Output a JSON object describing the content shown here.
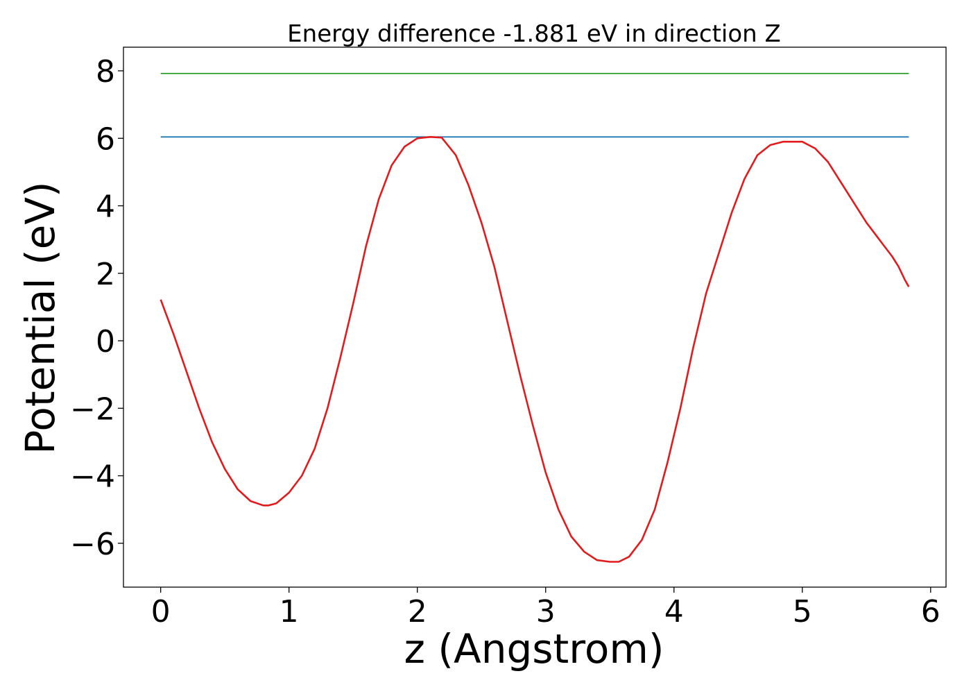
{
  "chart_data": {
    "type": "line",
    "title": "Energy difference -1.881 eV in direction Z",
    "xlabel": "z (Angstrom)",
    "ylabel": "Potential (eV)",
    "xlim": [
      -0.29,
      6.12
    ],
    "ylim": [
      -7.3,
      8.7
    ],
    "xticks": [
      0,
      1,
      2,
      3,
      4,
      5,
      6
    ],
    "xtick_labels": [
      "0",
      "1",
      "2",
      "3",
      "4",
      "5",
      "6"
    ],
    "yticks": [
      -6,
      -4,
      -2,
      0,
      2,
      4,
      6,
      8
    ],
    "ytick_labels": [
      "−6",
      "−4",
      "−2",
      "0",
      "2",
      "4",
      "6",
      "8"
    ],
    "grid": false,
    "series": [
      {
        "color": "#2ca02c",
        "x": [
          0.0,
          5.83
        ],
        "y": [
          7.92,
          7.92
        ]
      },
      {
        "color": "#1f77b4",
        "x": [
          0.0,
          5.83
        ],
        "y": [
          6.04,
          6.04
        ]
      },
      {
        "color": "#e31a1c",
        "x": [
          0.0,
          0.1,
          0.2,
          0.3,
          0.4,
          0.5,
          0.6,
          0.7,
          0.8,
          0.84,
          0.9,
          1.0,
          1.1,
          1.2,
          1.3,
          1.4,
          1.5,
          1.6,
          1.7,
          1.8,
          1.9,
          2.0,
          2.1,
          2.19,
          2.3,
          2.4,
          2.5,
          2.6,
          2.7,
          2.8,
          2.9,
          3.0,
          3.1,
          3.2,
          3.3,
          3.4,
          3.5,
          3.57,
          3.65,
          3.75,
          3.85,
          3.95,
          4.05,
          4.15,
          4.25,
          4.35,
          4.45,
          4.55,
          4.65,
          4.75,
          4.85,
          4.95,
          5.0,
          5.1,
          5.2,
          5.3,
          5.4,
          5.5,
          5.6,
          5.7,
          5.75,
          5.8,
          5.83
        ],
        "y": [
          1.22,
          0.2,
          -0.9,
          -2.0,
          -3.0,
          -3.8,
          -4.4,
          -4.75,
          -4.88,
          -4.88,
          -4.82,
          -4.5,
          -4.0,
          -3.2,
          -2.0,
          -0.5,
          1.1,
          2.8,
          4.2,
          5.2,
          5.75,
          6.0,
          6.04,
          6.02,
          5.5,
          4.6,
          3.5,
          2.2,
          0.6,
          -1.0,
          -2.5,
          -3.9,
          -5.0,
          -5.8,
          -6.25,
          -6.5,
          -6.55,
          -6.55,
          -6.4,
          -5.9,
          -5.0,
          -3.6,
          -2.0,
          -0.2,
          1.4,
          2.6,
          3.8,
          4.8,
          5.5,
          5.8,
          5.9,
          5.9,
          5.9,
          5.7,
          5.3,
          4.7,
          4.1,
          3.5,
          3.0,
          2.5,
          2.2,
          1.8,
          1.6
        ]
      }
    ]
  }
}
